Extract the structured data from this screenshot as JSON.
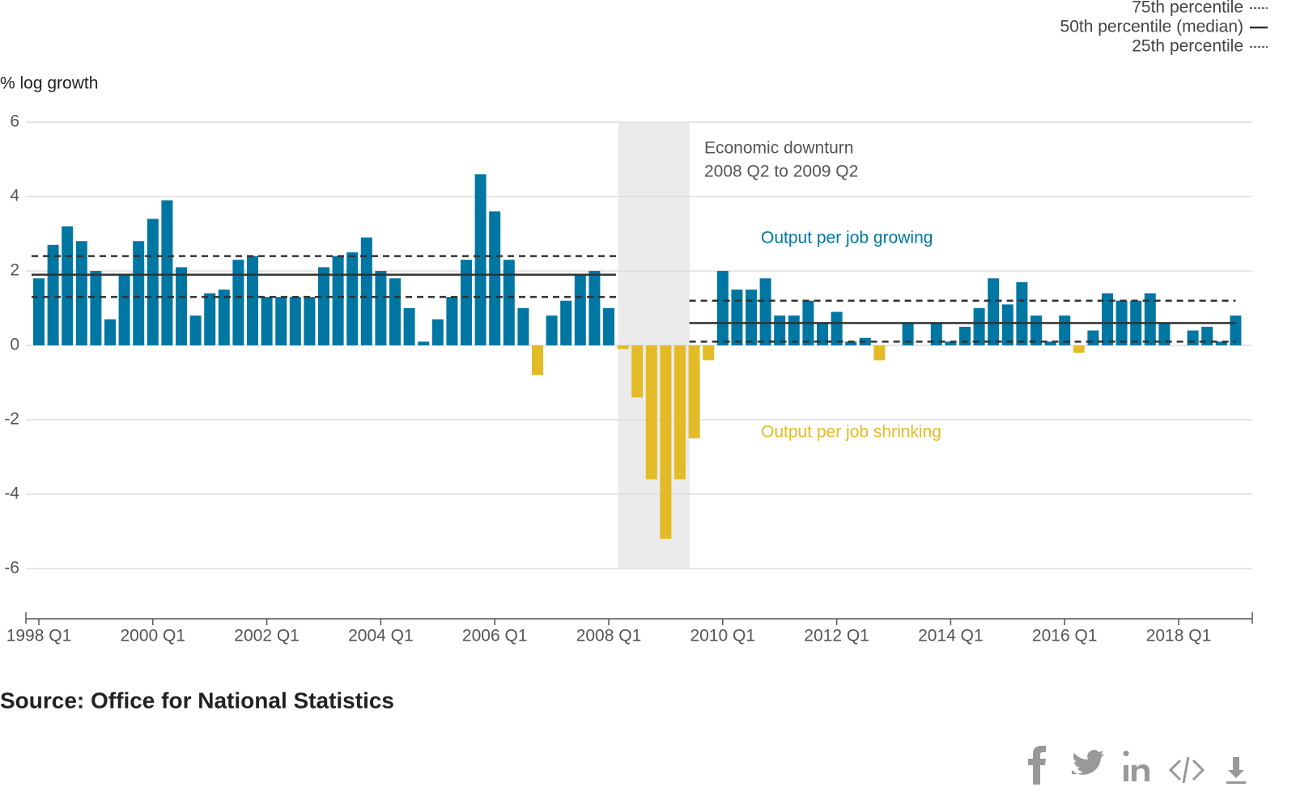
{
  "chart_data": {
    "type": "bar",
    "y_label": "% log growth",
    "categories": [
      "1998 Q1",
      null,
      null,
      null,
      null,
      null,
      null,
      null,
      "2000 Q1",
      null,
      null,
      null,
      null,
      null,
      null,
      null,
      "2002 Q1",
      null,
      null,
      null,
      null,
      null,
      null,
      null,
      "2004 Q1",
      null,
      null,
      null,
      null,
      null,
      null,
      null,
      "2006 Q1",
      null,
      null,
      null,
      null,
      null,
      null,
      null,
      "2008 Q1",
      null,
      null,
      null,
      null,
      null,
      null,
      null,
      "2010 Q1",
      null,
      null,
      null,
      null,
      null,
      null,
      null,
      "2012 Q1",
      null,
      null,
      null,
      null,
      null,
      null,
      null,
      "2014 Q1",
      null,
      null,
      null,
      null,
      null,
      null,
      null,
      "2016 Q1",
      null,
      null,
      null,
      null,
      null,
      null,
      null,
      "2018 Q1",
      null,
      null,
      null,
      null
    ],
    "values": [
      1.8,
      2.7,
      3.2,
      2.8,
      2.0,
      0.7,
      1.9,
      2.8,
      3.4,
      3.9,
      2.1,
      0.8,
      1.4,
      1.5,
      2.3,
      2.4,
      1.3,
      1.3,
      1.3,
      1.3,
      2.1,
      2.4,
      2.5,
      2.9,
      2.0,
      1.8,
      1.0,
      0.1,
      0.7,
      1.3,
      2.3,
      4.6,
      3.6,
      2.3,
      1.0,
      -0.8,
      0.8,
      1.2,
      1.9,
      2.0,
      1.0,
      -0.1,
      -1.4,
      -3.6,
      -5.2,
      -3.6,
      -2.5,
      -0.4,
      2.0,
      1.5,
      1.5,
      1.8,
      0.8,
      0.8,
      1.2,
      0.6,
      0.9,
      0.1,
      0.2,
      -0.4,
      0,
      0.6,
      0,
      0.6,
      0.1,
      0.5,
      1.0,
      1.8,
      1.1,
      1.7,
      0.8,
      0.1,
      0.8,
      -0.2,
      0.4,
      1.4,
      1.2,
      1.2,
      1.4,
      0.6,
      0,
      0.4,
      0.5,
      0.1,
      0.8
    ],
    "positive_color": "#0076a3",
    "negative_color": "#e3bb27",
    "ylim": [
      -7.35,
      6
    ],
    "yticks": [
      -6,
      -4,
      -2,
      0,
      2,
      4,
      6
    ],
    "grid": true,
    "percentiles": [
      {
        "name": "75th percentile",
        "values": [
          2.4,
          1.2
        ],
        "dash": true
      },
      {
        "name": "50th percentile (median)",
        "values": [
          1.9,
          0.6
        ],
        "dash": false
      },
      {
        "name": "25th percentile",
        "values": [
          1.3,
          0.1
        ],
        "dash": true
      }
    ],
    "shaded_period": [
      "Economic downturn",
      "2008 Q2 to 2009 Q2"
    ],
    "annotations": [
      "Output per job growing",
      "Output per job shrinking"
    ],
    "source": "Source: Office for National Statistics"
  }
}
